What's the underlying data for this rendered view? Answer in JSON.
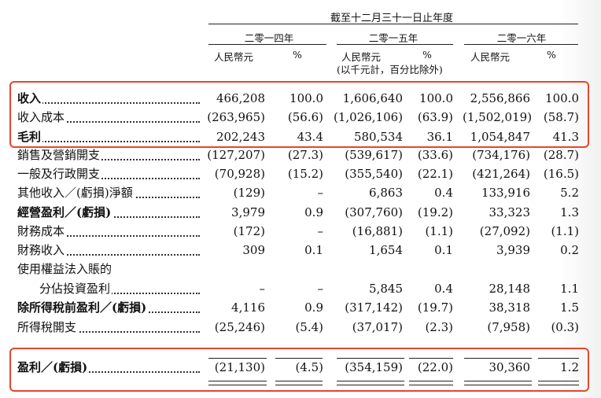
{
  "header": {
    "period_title": "截至十二月三十一日止年度",
    "years": [
      "二零一四年",
      "二零一五年",
      "二零一六年"
    ],
    "currency": "人民幣元",
    "percent": "%",
    "unit_note": "(以千元計，百分比除外)"
  },
  "rows": [
    {
      "label": "收入",
      "bold": true,
      "values": [
        "466,208",
        "100.0",
        "1,606,640",
        "100.0",
        "2,556,866",
        "100.0"
      ]
    },
    {
      "label": "收入成本",
      "bold": false,
      "values": [
        "(263,965)",
        "(56.6)",
        "(1,026,106)",
        "(63.9)",
        "(1,502,019)",
        "(58.7)"
      ]
    },
    {
      "label": "毛利",
      "bold": true,
      "values": [
        "202,243",
        "43.4",
        "580,534",
        "36.1",
        "1,054,847",
        "41.3"
      ]
    },
    {
      "label": "銷售及營銷開支",
      "bold": false,
      "values": [
        "(127,207)",
        "(27.3)",
        "(539,617)",
        "(33.6)",
        "(734,176)",
        "(28.7)"
      ]
    },
    {
      "label": "一般及行政開支",
      "bold": false,
      "values": [
        "(70,928)",
        "(15.2)",
        "(355,540)",
        "(22.1)",
        "(421,264)",
        "(16.5)"
      ]
    },
    {
      "label": "其他收入／(虧損)淨額",
      "bold": false,
      "values": [
        "(129)",
        "–",
        "6,863",
        "0.4",
        "133,916",
        "5.2"
      ]
    },
    {
      "label": "經營盈利／(虧損)",
      "bold": true,
      "values": [
        "3,979",
        "0.9",
        "(307,760)",
        "(19.2)",
        "33,323",
        "1.3"
      ]
    },
    {
      "label": "財務成本",
      "bold": false,
      "values": [
        "(172)",
        "–",
        "(16,881)",
        "(1.1)",
        "(27,092)",
        "(1.1)"
      ]
    },
    {
      "label": "財務收入",
      "bold": false,
      "values": [
        "309",
        "0.1",
        "1,654",
        "0.1",
        "3,939",
        "0.2"
      ]
    },
    {
      "label": "使用權益法入賬的",
      "bold": false,
      "values": [
        "",
        "",
        "",
        "",
        "",
        ""
      ]
    },
    {
      "label": "分佔投資盈利",
      "bold": false,
      "values": [
        "–",
        "–",
        "5,845",
        "0.4",
        "28,148",
        "1.1"
      ]
    },
    {
      "label": "除所得稅前盈利／(虧損)",
      "bold": true,
      "values": [
        "4,116",
        "0.9",
        "(317,142)",
        "(19.7)",
        "38,318",
        "1.5"
      ]
    },
    {
      "label": "所得稅開支",
      "bold": false,
      "values": [
        "(25,246)",
        "(5.4)",
        "(37,017)",
        "(2.3)",
        "(7,958)",
        "(0.3)"
      ]
    },
    {
      "label": "盈利／(虧損)",
      "bold": true,
      "values": [
        "(21,130)",
        "(4.5)",
        "(354,159)",
        "(22.0)",
        "30,360",
        "1.2"
      ]
    }
  ]
}
